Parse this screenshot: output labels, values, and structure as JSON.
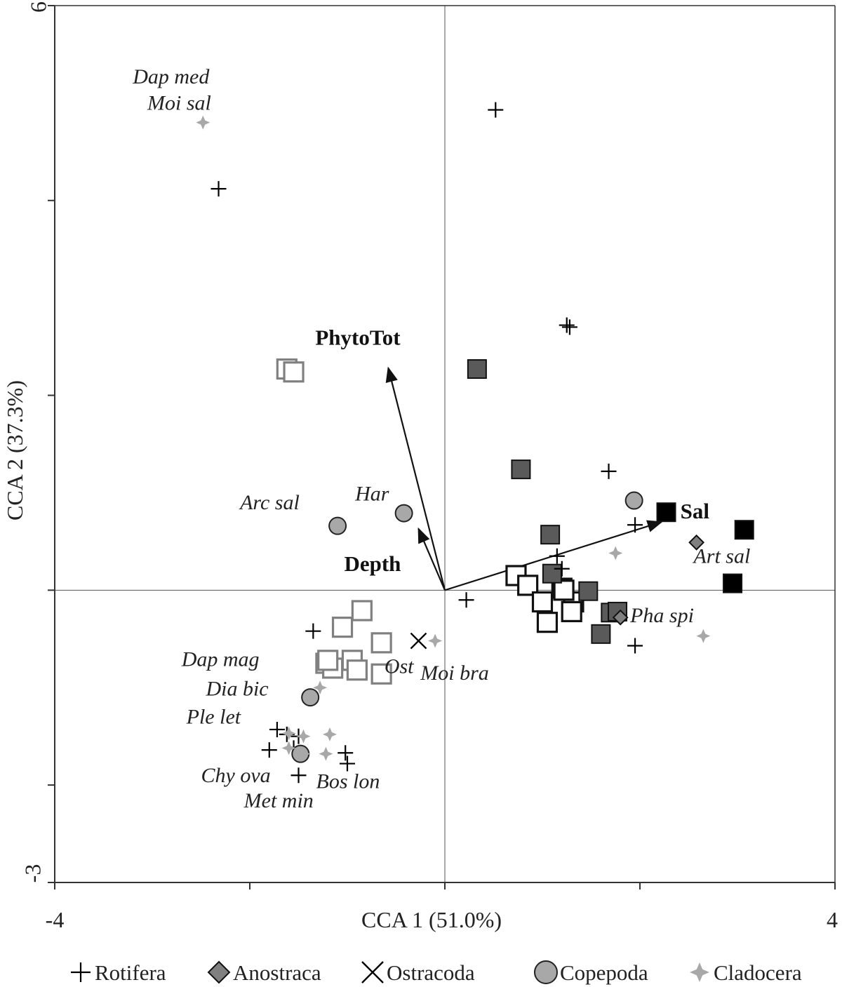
{
  "chart_data": {
    "type": "scatter",
    "title": "",
    "xlabel": "CCA 1 (51.0%)",
    "ylabel": "CCA 2 (37.3%)",
    "xlim": [
      -4,
      4
    ],
    "ylim": [
      -3,
      6
    ],
    "x_tick_labels": [
      "-4",
      "4"
    ],
    "y_tick_labels": [
      "-3",
      "6"
    ],
    "x_ticks": [
      -4,
      -2,
      0,
      2,
      4
    ],
    "y_ticks": [
      -3,
      -2,
      0,
      2,
      4,
      6
    ],
    "gridlines": false,
    "zero_lines": true,
    "env_vectors": [
      {
        "name": "PhytoTot",
        "x": -0.58,
        "y": 2.28
      },
      {
        "name": "Depth",
        "x": -0.27,
        "y": 0.63
      },
      {
        "name": "Sal",
        "x": 2.22,
        "y": 0.7
      }
    ],
    "species_labels": [
      {
        "text": "Dap med",
        "x": -3.2,
        "y": 5.2
      },
      {
        "text": "Moi sal",
        "x": -3.05,
        "y": 4.93
      },
      {
        "text": "Arc sal",
        "x": -2.1,
        "y": 0.83
      },
      {
        "text": "Har",
        "x": -0.92,
        "y": 0.92
      },
      {
        "text": "Art sal",
        "x": 2.55,
        "y": 0.28
      },
      {
        "text": "Pha spi",
        "x": 1.9,
        "y": -0.33
      },
      {
        "text": "Ost",
        "x": -0.62,
        "y": -0.85
      },
      {
        "text": "Moi bra",
        "x": -0.25,
        "y": -0.92
      },
      {
        "text": "Dap mag",
        "x": -2.7,
        "y": -0.78
      },
      {
        "text": "Dia bic",
        "x": -2.45,
        "y": -1.08
      },
      {
        "text": "Ple let",
        "x": -2.65,
        "y": -1.37
      },
      {
        "text": "Chy ova",
        "x": -2.5,
        "y": -1.97
      },
      {
        "text": "Bos lon",
        "x": -1.32,
        "y": -2.03
      },
      {
        "text": "Met min",
        "x": -2.06,
        "y": -2.23
      }
    ],
    "series": [
      {
        "name": "Rotifera",
        "marker": "plus",
        "color": "#000000",
        "points": [
          [
            0.52,
            4.93
          ],
          [
            -2.32,
            4.12
          ],
          [
            1.25,
            2.72
          ],
          [
            1.28,
            2.7
          ],
          [
            1.68,
            1.22
          ],
          [
            1.95,
            0.67
          ],
          [
            1.15,
            0.35
          ],
          [
            1.2,
            0.22
          ],
          [
            0.22,
            -0.1
          ],
          [
            1.95,
            -0.57
          ],
          [
            -1.35,
            -0.42
          ],
          [
            -1.72,
            -1.43
          ],
          [
            -1.62,
            -1.48
          ],
          [
            -1.5,
            -1.5
          ],
          [
            -1.8,
            -1.64
          ],
          [
            -1.55,
            -1.62
          ],
          [
            -1.02,
            -1.67
          ],
          [
            -1.0,
            -1.78
          ],
          [
            -1.5,
            -1.9
          ]
        ]
      },
      {
        "name": "Anostraca",
        "marker": "diamond",
        "color": "#808080",
        "points": [
          [
            2.58,
            0.49
          ],
          [
            1.8,
            -0.28
          ]
        ]
      },
      {
        "name": "Ostracoda",
        "marker": "x",
        "color": "#000000",
        "points": [
          [
            -0.27,
            -0.52
          ]
        ]
      },
      {
        "name": "Copepoda",
        "marker": "circle",
        "color": "#a8a8a8",
        "points": [
          [
            1.94,
            0.92
          ],
          [
            -0.42,
            0.79
          ],
          [
            -1.1,
            0.66
          ],
          [
            -1.38,
            -1.1
          ],
          [
            -1.48,
            -1.68
          ]
        ]
      },
      {
        "name": "Cladocera",
        "marker": "star",
        "color": "#a8a8a8",
        "points": [
          [
            -2.48,
            4.8
          ],
          [
            1.75,
            0.38
          ],
          [
            2.65,
            -0.47
          ],
          [
            -0.1,
            -0.52
          ],
          [
            -1.28,
            -1.0
          ],
          [
            -1.6,
            -1.47
          ],
          [
            -1.45,
            -1.5
          ],
          [
            -1.18,
            -1.48
          ],
          [
            -1.6,
            -1.62
          ],
          [
            -1.45,
            -1.68
          ],
          [
            -1.22,
            -1.68
          ]
        ]
      },
      {
        "name": "Sites (grey open)",
        "marker": "square-open",
        "color": "#808080",
        "legend": false,
        "points": [
          [
            -1.62,
            2.27
          ],
          [
            -1.55,
            2.24
          ],
          [
            -0.85,
            -0.21
          ],
          [
            -1.05,
            -0.38
          ],
          [
            -0.65,
            -0.54
          ],
          [
            -1.22,
            -0.75
          ],
          [
            -0.95,
            -0.72
          ],
          [
            -1.15,
            -0.8
          ],
          [
            -1.2,
            -0.72
          ],
          [
            -0.9,
            -0.82
          ],
          [
            -0.65,
            -0.86
          ]
        ]
      },
      {
        "name": "Sites (black open)",
        "marker": "square-open",
        "color": "#111111",
        "legend": false,
        "points": [
          [
            0.73,
            0.15
          ],
          [
            0.85,
            0.05
          ],
          [
            1.2,
            0.02
          ],
          [
            1.32,
            -0.12
          ],
          [
            1.0,
            -0.12
          ],
          [
            1.3,
            -0.22
          ],
          [
            1.05,
            -0.33
          ],
          [
            1.22,
            0.0
          ]
        ]
      },
      {
        "name": "Sites (dark grey)",
        "marker": "square-filled",
        "color": "#5a5a5a",
        "legend": false,
        "points": [
          [
            0.33,
            2.27
          ],
          [
            0.78,
            1.24
          ],
          [
            1.08,
            0.57
          ],
          [
            1.1,
            0.17
          ],
          [
            1.47,
            -0.01
          ],
          [
            1.7,
            -0.23
          ],
          [
            1.77,
            -0.22
          ],
          [
            1.6,
            -0.45
          ]
        ]
      },
      {
        "name": "Sites (black filled)",
        "marker": "square-filled",
        "color": "#000000",
        "legend": false,
        "points": [
          [
            2.27,
            0.8
          ],
          [
            3.07,
            0.62
          ],
          [
            2.95,
            0.07
          ]
        ]
      }
    ],
    "legend": {
      "position": "bottom",
      "entries": [
        "Rotifera",
        "Anostraca",
        "Ostracoda",
        "Copepoda",
        "Cladocera"
      ]
    }
  }
}
